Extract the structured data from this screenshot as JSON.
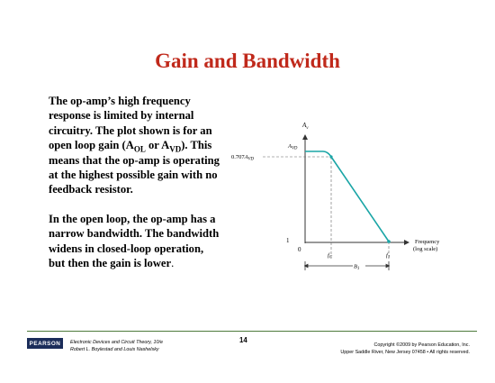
{
  "slide": {
    "title": "Gain and Bandwidth",
    "para1": {
      "t1": "The op-amp’s high frequency response is limited by internal circuitry. The plot shown is for an open loop gain (A",
      "sub1": "OL",
      "t2": " or A",
      "sub2": "VD",
      "t3": "). This means that the op-amp is operating at the highest possible gain with no feedback resistor."
    },
    "para2": {
      "text": "In the open loop, the op-amp has a narrow bandwidth. The bandwidth widens in closed-loop operation, but then the gain is lower",
      "end": "."
    }
  },
  "chart_data": {
    "type": "line",
    "x_scale": "log",
    "ylabel": "A_v",
    "xlabel": "Frequency (log scale)",
    "annotations": {
      "y_level_label": "A_VD",
      "y_cutoff_label": "0.707A_VD",
      "y_one_label": "1",
      "origin_label": "0",
      "x_cutoff_label": "f_C",
      "x_unity_label": "f_1",
      "bandwidth_label": "B_1"
    },
    "labels": {
      "ylabel_main": "A",
      "ylabel_sub": "v",
      "ylevel_main": "A",
      "ylevel_sub": "VD",
      "ycut_main": "0.707",
      "ycut_a": "A",
      "ycut_sub": "VD",
      "one": "1",
      "zero": "0",
      "fc_main": "f",
      "fc_sub": "C",
      "f1_main": "f",
      "f1_sub": "1",
      "b1_main": "B",
      "b1_sub": "1",
      "xlabel_line1": "Frequency",
      "xlabel_line2": "(log scale)"
    }
  },
  "footer": {
    "logo": "PEARSON",
    "book_line1": "Electronic Devices and Circuit Theory, 10/e",
    "book_line2": "Robert L. Boylestad and Louis Nashelsky",
    "page_number": "14",
    "copyright_line1": "Copyright ©2009 by Pearson Education, Inc.",
    "copyright_line2": "Upper Saddle River, New Jersey 07458 • All rights reserved."
  },
  "colors": {
    "title": "#c0291b",
    "curve": "#1aa5a6",
    "axis": "#333333",
    "rule": "#4d7b3c",
    "logo_bg": "#1b2d5a"
  }
}
